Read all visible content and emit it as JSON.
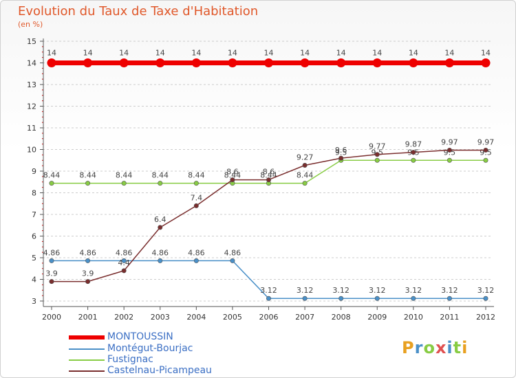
{
  "header": {
    "title": "Evolution du Taux de Taxe d'Habitation",
    "subtitle": "(en %)"
  },
  "chart_data": {
    "type": "line",
    "title": "Evolution du Taux de Taxe d'Habitation",
    "subtitle": "(en %)",
    "xlabel": "",
    "ylabel": "",
    "x": [
      "2000",
      "2001",
      "2002",
      "2003",
      "2004",
      "2005",
      "2006",
      "2007",
      "2008",
      "2009",
      "2010",
      "2011",
      "2012"
    ],
    "ylim": [
      3,
      15
    ],
    "yticks": [
      3,
      4,
      5,
      6,
      7,
      8,
      9,
      10,
      11,
      12,
      13,
      14,
      15
    ],
    "grid": "dashed-horizontal",
    "legend_position": "bottom",
    "series": [
      {
        "name": "MONTOUSSIN",
        "color": "#ee0000",
        "values": [
          14,
          14,
          14,
          14,
          14,
          14,
          14,
          14,
          14,
          14,
          14,
          14,
          14
        ],
        "labels": [
          "14",
          "14",
          "14",
          "14",
          "14",
          "14",
          "14",
          "14",
          "14",
          "14",
          "14",
          "14",
          "14"
        ]
      },
      {
        "name": "Montégut-Bourjac",
        "color": "#4a90c8",
        "values": [
          4.86,
          4.86,
          4.86,
          4.86,
          4.86,
          4.86,
          3.12,
          3.12,
          3.12,
          3.12,
          3.12,
          3.12,
          3.12
        ],
        "labels": [
          "4.86",
          "4.86",
          "4.86",
          "4.86",
          "4.86",
          "4.86",
          "3.12",
          "3.12",
          "3.12",
          "3.12",
          "3.12",
          "3.12",
          "3.12"
        ]
      },
      {
        "name": "Fustignac",
        "color": "#88cc44",
        "values": [
          8.44,
          8.44,
          8.44,
          8.44,
          8.44,
          8.44,
          8.44,
          8.44,
          9.5,
          9.5,
          9.5,
          9.5,
          9.5
        ],
        "labels": [
          "8.44",
          "8.44",
          "8.44",
          "8.44",
          "8.44",
          "8.44",
          "8.44",
          "8.44",
          "9.5",
          "9.5",
          "9.5",
          "9.5",
          "9.5"
        ]
      },
      {
        "name": "Castelnau-Picampeau",
        "color": "#7a2e2e",
        "values": [
          3.9,
          3.9,
          4.4,
          6.4,
          7.4,
          8.6,
          8.6,
          9.27,
          9.6,
          9.77,
          9.87,
          9.97,
          9.97
        ],
        "labels": [
          "3.9",
          "3.9",
          "4.4",
          "6.4",
          "7.4",
          "8.6",
          "8.6",
          "9.27",
          "9.6",
          "9.77",
          "9.87",
          "9.97",
          "9.97"
        ]
      }
    ]
  },
  "legend": {
    "items": [
      {
        "label": "MONTOUSSIN",
        "color": "#ee0000"
      },
      {
        "label": "Montégut-Bourjac",
        "color": "#4a90c8"
      },
      {
        "label": "Fustignac",
        "color": "#88cc44"
      },
      {
        "label": "Castelnau-Picampeau",
        "color": "#7a2e2e"
      }
    ]
  },
  "logo": {
    "letters": [
      "P",
      "r",
      "o",
      "x",
      "i",
      "t",
      "i"
    ],
    "colors": [
      "#e8a020",
      "#4a90c8",
      "#88cc44",
      "#e05050",
      "#4a90c8",
      "#88cc44",
      "#e8a020"
    ]
  }
}
